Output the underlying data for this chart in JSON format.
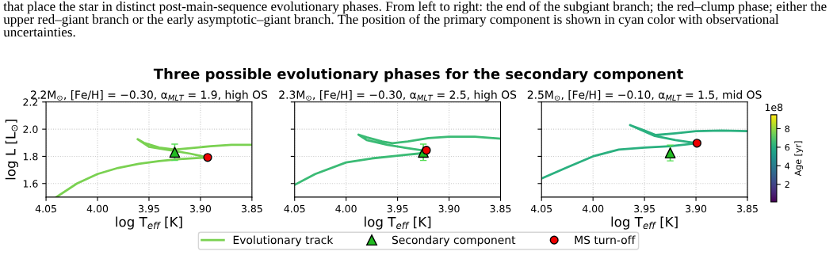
{
  "chart_data": [
    {
      "type": "line",
      "title": "Three possible evolutionary phases for the secondary component",
      "subtitle": "2.2M$_{⊙}$, [Fe/H] = −0.30, α$_{MLT}$ = 1.9, high OS",
      "xlabel": "log T$_{eff}$ [K]",
      "ylabel": "log L [L$_{⊙}$]",
      "yticks": [
        1.6,
        1.8,
        {
          "value": 2.0,
          "label": "2.0"
        },
        {
          "value": 2.2,
          "label": "2.2"
        }
      ],
      "annotations": [
        "that place the star in distinct post-main-sequence evolutionary phases. From left to right: the end of the subgiant branch; the red–clump phase; either the upper red–giant branch or the early asymptotic–giant branch. The position of the primary component is shown in cyan color with observational uncertainties."
      ],
      "xlim": [
        4.05,
        3.85
      ],
      "xticks": [
        {
          "value": 4.05,
          "label": "4.05"
        },
        {
          "value": 4.0,
          "label": "4.00"
        },
        {
          "value": 3.95,
          "label": "3.95"
        },
        {
          "value": 3.9,
          "label": "3.90"
        },
        {
          "value": 3.85,
          "label": "3.85"
        }
      ],
      "ylim": [
        1.5,
        2.2
      ],
      "grid": true,
      "legend": "bottom",
      "series": [
        {
          "name": "Evolutionary track",
          "color": "#7ad151",
          "x": [
            4.04,
            4.02,
            4.0,
            3.98,
            3.96,
            3.94,
            3.92,
            3.893,
            3.91,
            3.93,
            3.95,
            3.961,
            3.955,
            3.94,
            3.925,
            3.91,
            3.89,
            3.87,
            3.85
          ],
          "values": [
            1.5,
            1.6,
            1.67,
            1.715,
            1.745,
            1.765,
            1.78,
            1.792,
            1.82,
            1.845,
            1.87,
            1.926,
            1.9,
            1.865,
            1.85,
            1.86,
            1.875,
            1.885,
            1.885
          ]
        },
        {
          "name": "Secondary component",
          "type": "scatter",
          "marker": "triangle",
          "color": "#22bb22",
          "x": [
            3.925
          ],
          "values": [
            1.83
          ],
          "errors": [
            0.06
          ]
        },
        {
          "name": "MS turn-off",
          "type": "scatter",
          "marker": "circle",
          "color": "#ee0000",
          "x": [
            3.893
          ],
          "values": [
            1.792
          ]
        }
      ]
    },
    {
      "type": "line",
      "subtitle": "2.3M$_{⊙}$, [Fe/H] = −0.30, α$_{MLT}$ = 2.5, high OS",
      "xlabel": "log T$_{eff}$ [K]",
      "tick_labels": "x",
      "xlim": [
        4.05,
        3.85
      ],
      "xticks": [
        {
          "value": 4.05,
          "label": "4.05"
        },
        {
          "value": 4.0,
          "label": "4.00"
        },
        {
          "value": 3.95,
          "label": "3.95"
        },
        {
          "value": 3.9,
          "label": "3.90"
        },
        {
          "value": 3.85,
          "label": "3.85"
        }
      ],
      "ylim": [
        1.5,
        2.2
      ],
      "yticks": [
        1.6,
        1.8,
        2.0,
        2.2
      ],
      "grid": true,
      "series": [
        {
          "color": "#3bbb75",
          "x": [
            4.05,
            4.03,
            4.0,
            3.975,
            3.95,
            3.93,
            3.922,
            3.94,
            3.96,
            3.98,
            3.988,
            3.98,
            3.965,
            3.955,
            3.94,
            3.92,
            3.9,
            3.875,
            3.85
          ],
          "values": [
            1.59,
            1.67,
            1.755,
            1.785,
            1.805,
            1.82,
            1.84,
            1.86,
            1.885,
            1.92,
            1.96,
            1.94,
            1.91,
            1.897,
            1.91,
            1.935,
            1.945,
            1.945,
            1.93
          ]
        },
        {
          "type": "scatter",
          "marker": "triangle",
          "color": "#22bb22",
          "x": [
            3.925
          ],
          "values": [
            1.83
          ],
          "errors": [
            0.06
          ]
        },
        {
          "type": "scatter",
          "marker": "circle",
          "color": "#ee0000",
          "x": [
            3.922
          ],
          "values": [
            1.845
          ]
        }
      ]
    },
    {
      "type": "line",
      "subtitle": "2.5M$_{⊙}$, [Fe/H] = −0.10, α$_{MLT}$ = 1.5, mid OS",
      "xlabel": "log T$_{eff}$ [K]",
      "tick_labels": "x",
      "clabel": "Age [yr]",
      "clim": [
        0.1,
        9.5
      ],
      "cticks": [
        2,
        4,
        6,
        8
      ],
      "annotations": [
        "1e8"
      ],
      "xlim": [
        4.05,
        3.85
      ],
      "xticks": [
        {
          "value": 4.05,
          "label": "4.05"
        },
        {
          "value": 4.0,
          "label": "4.00"
        },
        {
          "value": 3.95,
          "label": "3.95"
        },
        {
          "value": 3.9,
          "label": "3.90"
        },
        {
          "value": 3.85,
          "label": "3.85"
        }
      ],
      "ylim": [
        1.5,
        2.2
      ],
      "yticks": [
        1.6,
        1.8,
        2.0,
        2.2
      ],
      "grid": true,
      "series": [
        {
          "color": "#2ab07f",
          "x": [
            4.05,
            4.025,
            4.0,
            3.975,
            3.95,
            3.925,
            3.899,
            3.92,
            3.94,
            3.964,
            3.95,
            3.939,
            3.92,
            3.9,
            3.875,
            3.85
          ],
          "values": [
            1.637,
            1.72,
            1.8,
            1.85,
            1.864,
            1.875,
            1.897,
            1.92,
            1.95,
            2.03,
            1.99,
            1.957,
            1.97,
            1.985,
            1.99,
            1.985
          ]
        },
        {
          "type": "scatter",
          "marker": "triangle",
          "color": "#22bb22",
          "x": [
            3.925
          ],
          "values": [
            1.825
          ],
          "errors": [
            0.058
          ]
        },
        {
          "type": "scatter",
          "marker": "circle",
          "color": "#ee0000",
          "x": [
            3.899
          ],
          "values": [
            1.897
          ]
        }
      ]
    }
  ]
}
